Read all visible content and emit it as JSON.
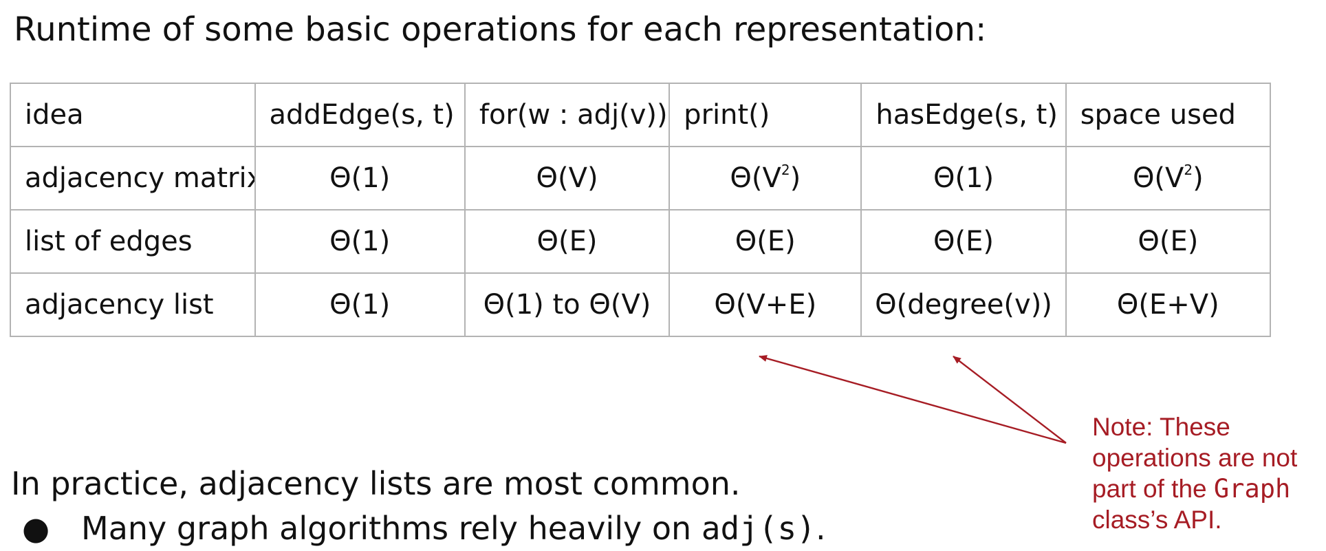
{
  "title": "Runtime of some basic operations for each representation:",
  "table": {
    "headers": [
      "idea",
      "addEdge(s, t)",
      "for(w : adj(v))",
      "print()",
      "hasEdge(s, t)",
      "space used"
    ],
    "rows": [
      {
        "idea": "adjacency matrix",
        "cells": [
          "Θ(1)",
          "Θ(V)",
          {
            "base": "Θ(V",
            "sup": "2",
            "tail": ")"
          },
          "Θ(1)",
          {
            "base": "Θ(V",
            "sup": "2",
            "tail": ")"
          }
        ]
      },
      {
        "idea": "list of edges",
        "cells": [
          "Θ(1)",
          "Θ(E)",
          "Θ(E)",
          "Θ(E)",
          "Θ(E)"
        ]
      },
      {
        "idea": "adjacency list",
        "cells": [
          "Θ(1)",
          "Θ(1) to Θ(V)",
          "Θ(V+E)",
          "Θ(degree(v))",
          "Θ(E+V)"
        ]
      }
    ]
  },
  "note": {
    "pre": "Note: These operations are not part of the ",
    "code": "Graph",
    "post": " class’s API.",
    "color": "#a61c24"
  },
  "body": {
    "practice": "In practice, adjacency lists are most common.",
    "bullet": {
      "symbol": "●",
      "pre": "Many graph algorithms rely heavily on ",
      "code": "adj(s)",
      "post": "."
    }
  }
}
